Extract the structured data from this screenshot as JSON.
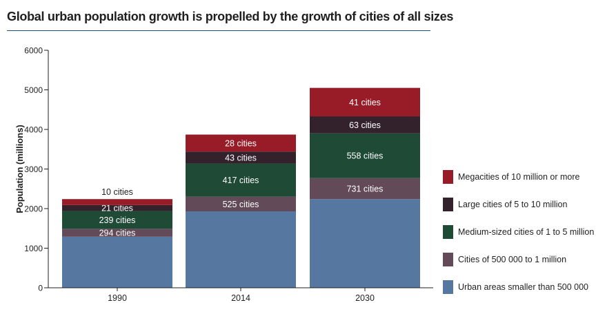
{
  "chart_data": {
    "type": "bar",
    "stacked": true,
    "title": "Global urban population growth is propelled by the growth of cities of all sizes",
    "xlabel": "",
    "ylabel": "Population (millions)",
    "ylim": [
      0,
      6000
    ],
    "yticks": [
      "0",
      "1000",
      "2000",
      "3000",
      "4000",
      "5000",
      "6000"
    ],
    "categories": [
      "1990",
      "2014",
      "2030"
    ],
    "series": [
      {
        "name": "Urban areas smaller than 500 000",
        "color": "#5677a0",
        "values": [
          1290,
          1930,
          2240
        ],
        "labels": [
          "",
          "",
          ""
        ]
      },
      {
        "name": "Cities of 500 000 to 1 million",
        "color": "#624a58",
        "values": [
          200,
          370,
          530
        ],
        "labels": [
          "294 cities",
          "525 cities",
          "731 cities"
        ]
      },
      {
        "name": "Medium-sized cities of 1 to 5 million",
        "color": "#1e4a36",
        "values": [
          450,
          840,
          1130
        ],
        "labels": [
          "239 cities",
          "417 cities",
          "558 cities"
        ]
      },
      {
        "name": "Large cities of 5 to 10 million",
        "color": "#33222c",
        "values": [
          150,
          300,
          430
        ],
        "labels": [
          "21 cities",
          "43 cities",
          "63 cities"
        ]
      },
      {
        "name": "Megacities of 10 million or more",
        "color": "#981c27",
        "values": [
          150,
          430,
          720
        ],
        "labels": [
          "10 cities",
          "28 cities",
          "41 cities"
        ]
      }
    ],
    "legend_position": "right",
    "grid": false
  }
}
